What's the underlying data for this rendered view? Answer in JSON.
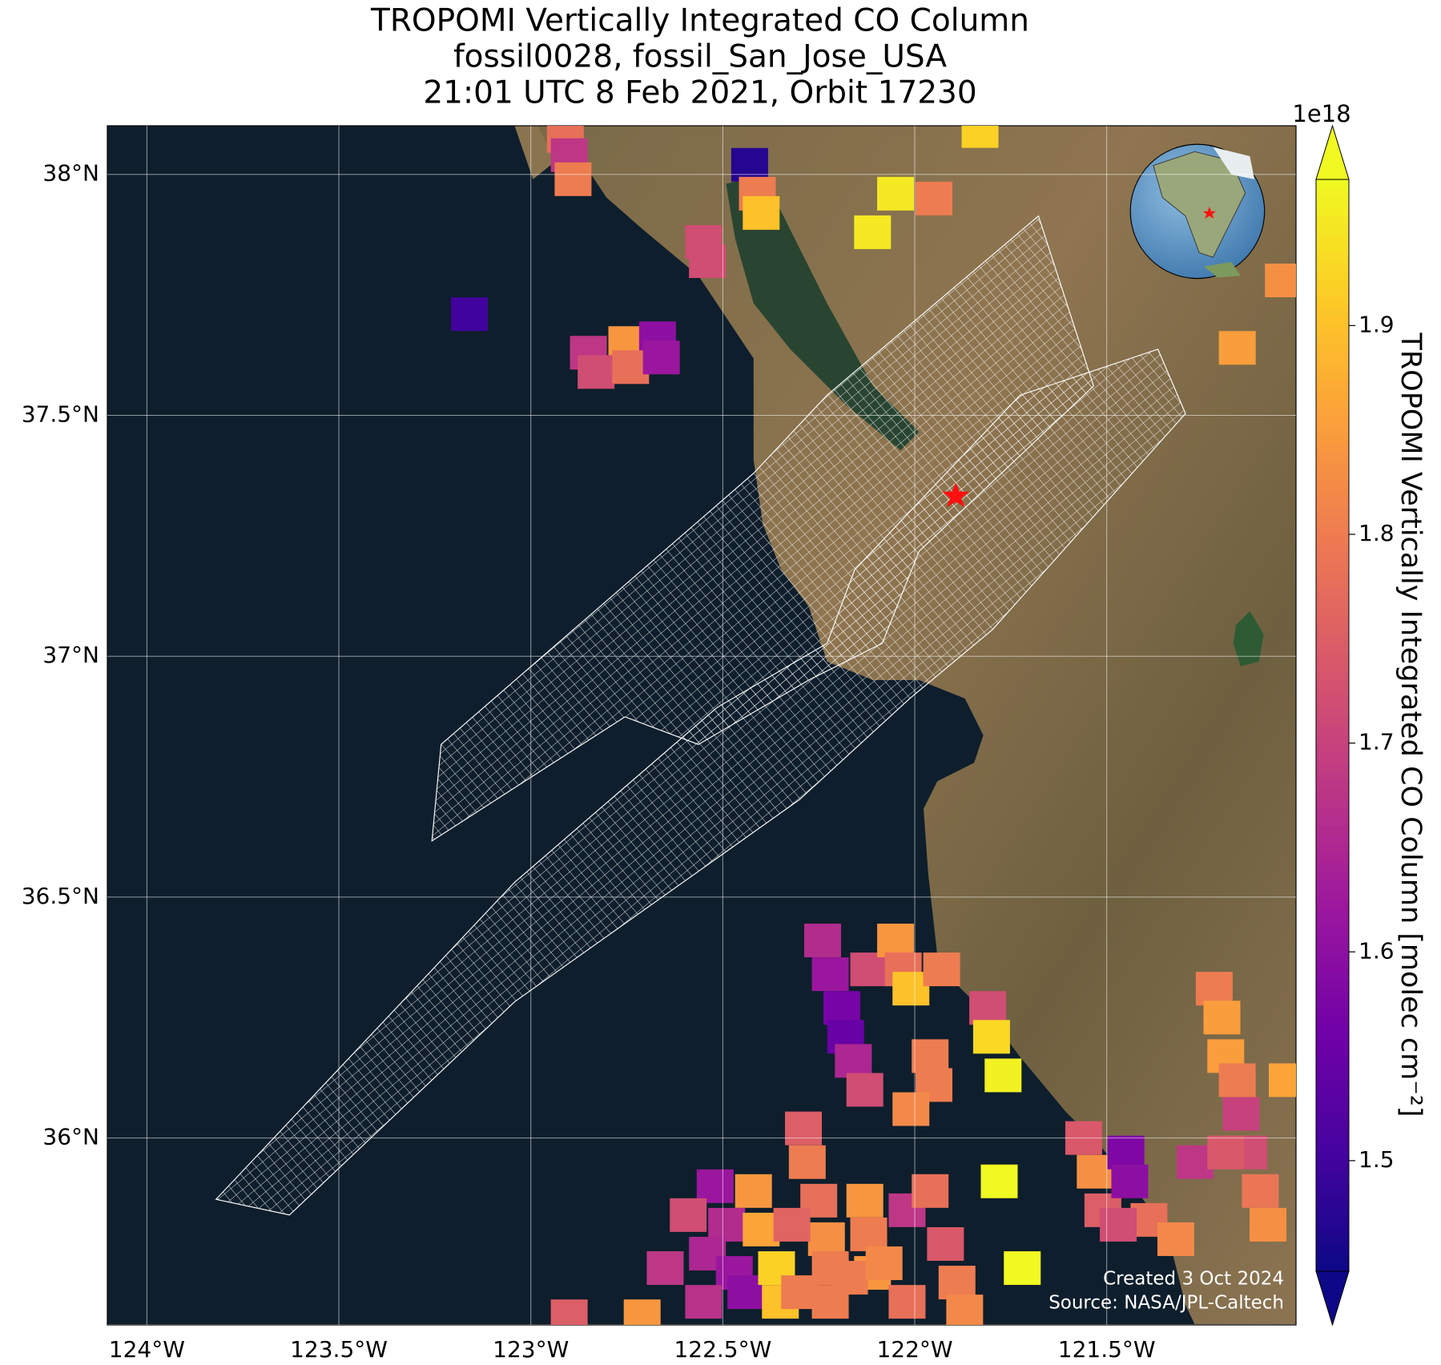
{
  "chart_data": {
    "type": "map",
    "title_lines": [
      "TROPOMI Vertically Integrated CO Column",
      "fossil0028, fossil_San_Jose_USA",
      "21:01 UTC 8 Feb 2021, Orbit 17230"
    ],
    "colorbar_label": "TROPOMI Vertically Integrated CO Column [molec cm⁻²]",
    "colorbar_offset": "1e18",
    "credits": [
      "Created 3 Oct 2024",
      "Source: NASA/JPL-Caltech"
    ],
    "xlim": [
      -124.103,
      -121.007
    ],
    "ylim": [
      35.612,
      38.101
    ],
    "xticks": [
      {
        "value": -124,
        "label": "124°W"
      },
      {
        "value": -123.5,
        "label": "123.5°W"
      },
      {
        "value": -123,
        "label": "123°W"
      },
      {
        "value": -122.5,
        "label": "122.5°W"
      },
      {
        "value": -122,
        "label": "122°W"
      },
      {
        "value": -121.5,
        "label": "121.5°W"
      }
    ],
    "yticks": [
      {
        "value": 36,
        "label": "36°N"
      },
      {
        "value": 36.5,
        "label": "36.5°N"
      },
      {
        "value": 37,
        "label": "37°N"
      },
      {
        "value": 37.5,
        "label": "37.5°N"
      },
      {
        "value": 38,
        "label": "38°N"
      }
    ],
    "grid": true,
    "clim": [
      1.447,
      1.97
    ],
    "cticks": [
      1.5,
      1.6,
      1.7,
      1.8,
      1.9
    ],
    "colormap": [
      "#0d0887",
      "#46039f",
      "#7201a8",
      "#9c179e",
      "#bd3786",
      "#d8576b",
      "#ed7953",
      "#fb9f3a",
      "#fdca26",
      "#f0f921"
    ],
    "x": [
      -122.91,
      -122.9,
      -122.89,
      -122.43,
      -122.41,
      -122.4,
      -122.55,
      -122.54,
      -121.95,
      -122.05,
      -122.11,
      -123.16,
      -122.85,
      -122.75,
      -122.67,
      -122.83,
      -122.74,
      -122.66,
      -121.04,
      -121.16,
      -121.83,
      -122.24,
      -122.22,
      -122.19,
      -122.18,
      -122.16,
      -122.13,
      -122.12,
      -122.05,
      -122.03,
      -122.01,
      -121.96,
      -121.95,
      -122.01,
      -121.81,
      -121.8,
      -121.77,
      -121.78,
      -121.72,
      -122.29,
      -122.28,
      -122.25,
      -122.23,
      -122.22,
      -122.13,
      -122.12,
      -122.11,
      -122.02,
      -121.96,
      -121.92,
      -121.89,
      -121.87,
      -122.52,
      -122.49,
      -122.59,
      -122.65,
      -122.54,
      -122.47,
      -122.44,
      -122.55,
      -122.42,
      -122.4,
      -122.36,
      -122.35,
      -122.32,
      -122.3,
      -122.22,
      -122.17,
      -122.08,
      -122.02,
      -122.9,
      -122.71,
      -121.22,
      -121.2,
      -121.19,
      -121.16,
      -121.15,
      -121.13,
      -121.1,
      -121.08,
      -121.03,
      -121.27,
      -121.19,
      -121.56,
      -121.53,
      -121.51,
      -121.45,
      -121.44,
      -121.39,
      -121.32,
      -121.47,
      -121.93
    ],
    "y": [
      38.08,
      38.04,
      37.99,
      38.02,
      37.96,
      37.92,
      37.86,
      37.82,
      37.95,
      37.96,
      37.88,
      37.71,
      37.63,
      37.65,
      37.66,
      37.59,
      37.6,
      37.62,
      37.78,
      37.64,
      38.09,
      36.41,
      36.34,
      36.27,
      36.21,
      36.16,
      36.1,
      36.35,
      36.41,
      36.35,
      36.31,
      36.17,
      36.11,
      36.06,
      36.27,
      36.21,
      36.13,
      35.91,
      35.73,
      36.02,
      35.95,
      35.87,
      35.79,
      35.73,
      35.87,
      35.8,
      35.72,
      35.85,
      35.89,
      35.78,
      35.7,
      35.64,
      35.9,
      35.82,
      35.84,
      35.73,
      35.76,
      35.72,
      35.68,
      35.66,
      35.89,
      35.81,
      35.73,
      35.66,
      35.82,
      35.68,
      35.66,
      35.71,
      35.74,
      35.66,
      35.63,
      35.63,
      36.31,
      36.25,
      36.17,
      36.12,
      36.05,
      35.97,
      35.89,
      35.82,
      36.12,
      35.95,
      35.97,
      36.0,
      35.93,
      35.85,
      35.97,
      35.91,
      35.83,
      35.79,
      35.82,
      36.35
    ],
    "values": [
      1.78,
      1.68,
      1.8,
      1.47,
      1.8,
      1.9,
      1.72,
      1.72,
      1.8,
      1.95,
      1.95,
      1.5,
      1.68,
      1.84,
      1.6,
      1.72,
      1.78,
      1.62,
      1.83,
      1.85,
      1.92,
      1.66,
      1.62,
      1.57,
      1.55,
      1.65,
      1.72,
      1.72,
      1.84,
      1.78,
      1.9,
      1.8,
      1.8,
      1.82,
      1.72,
      1.93,
      1.96,
      1.97,
      1.98,
      1.75,
      1.8,
      1.78,
      1.83,
      1.8,
      1.84,
      1.8,
      1.84,
      1.68,
      1.78,
      1.74,
      1.8,
      1.82,
      1.62,
      1.66,
      1.72,
      1.68,
      1.65,
      1.62,
      1.6,
      1.67,
      1.84,
      1.86,
      1.92,
      1.9,
      1.76,
      1.8,
      1.8,
      1.8,
      1.82,
      1.78,
      1.75,
      1.84,
      1.8,
      1.85,
      1.85,
      1.8,
      1.7,
      1.72,
      1.79,
      1.83,
      1.86,
      1.68,
      1.74,
      1.74,
      1.83,
      1.75,
      1.58,
      1.6,
      1.78,
      1.82,
      1.72,
      1.8
    ]
  }
}
